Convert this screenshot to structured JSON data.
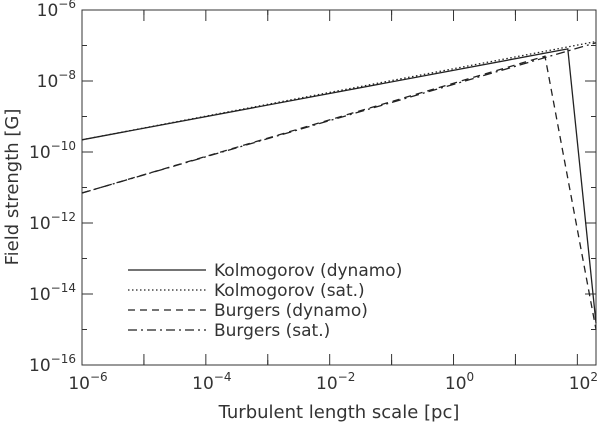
{
  "chart_data": {
    "type": "line",
    "xlabel": "Turbulent length scale [pc]",
    "ylabel": "Field strength [G]",
    "xscale": "log",
    "yscale": "log",
    "xlim": [
      1e-06,
      200
    ],
    "ylim": [
      1e-16,
      1e-06
    ],
    "grid": false,
    "legend_position": "lower-left",
    "x_ticks": [
      {
        "value": 1e-06,
        "base": "10",
        "exp": "−6"
      },
      {
        "value": 0.0001,
        "base": "10",
        "exp": "−4"
      },
      {
        "value": 0.01,
        "base": "10",
        "exp": "−2"
      },
      {
        "value": 1,
        "base": "10",
        "exp": "0"
      },
      {
        "value": 100,
        "base": "10",
        "exp": "2"
      }
    ],
    "y_ticks": [
      {
        "value": 1e-16,
        "base": "10",
        "exp": "−16"
      },
      {
        "value": 1e-14,
        "base": "10",
        "exp": "−14"
      },
      {
        "value": 1e-12,
        "base": "10",
        "exp": "−12"
      },
      {
        "value": 1e-10,
        "base": "10",
        "exp": "−10"
      },
      {
        "value": 1e-08,
        "base": "10",
        "exp": "−8"
      },
      {
        "value": 1e-06,
        "base": "10",
        "exp": "−6"
      }
    ],
    "series": [
      {
        "name": "Kolmogorov (dynamo)",
        "style": "solid",
        "x": [
          1e-06,
          70,
          200
        ],
        "y": [
          2.2e-10,
          8e-08,
          1.5e-15
        ]
      },
      {
        "name": "Kolmogorov (sat.)",
        "style": "dotted",
        "x": [
          1e-06,
          200
        ],
        "y": [
          2.2e-10,
          1.3e-07
        ]
      },
      {
        "name": "Burgers (dynamo)",
        "style": "dashed",
        "x": [
          1e-06,
          30,
          200
        ],
        "y": [
          7e-12,
          5e-08,
          1e-15
        ]
      },
      {
        "name": "Burgers (sat.)",
        "style": "dashdot",
        "x": [
          1e-06,
          200
        ],
        "y": [
          7e-12,
          1.2e-07
        ]
      }
    ]
  }
}
